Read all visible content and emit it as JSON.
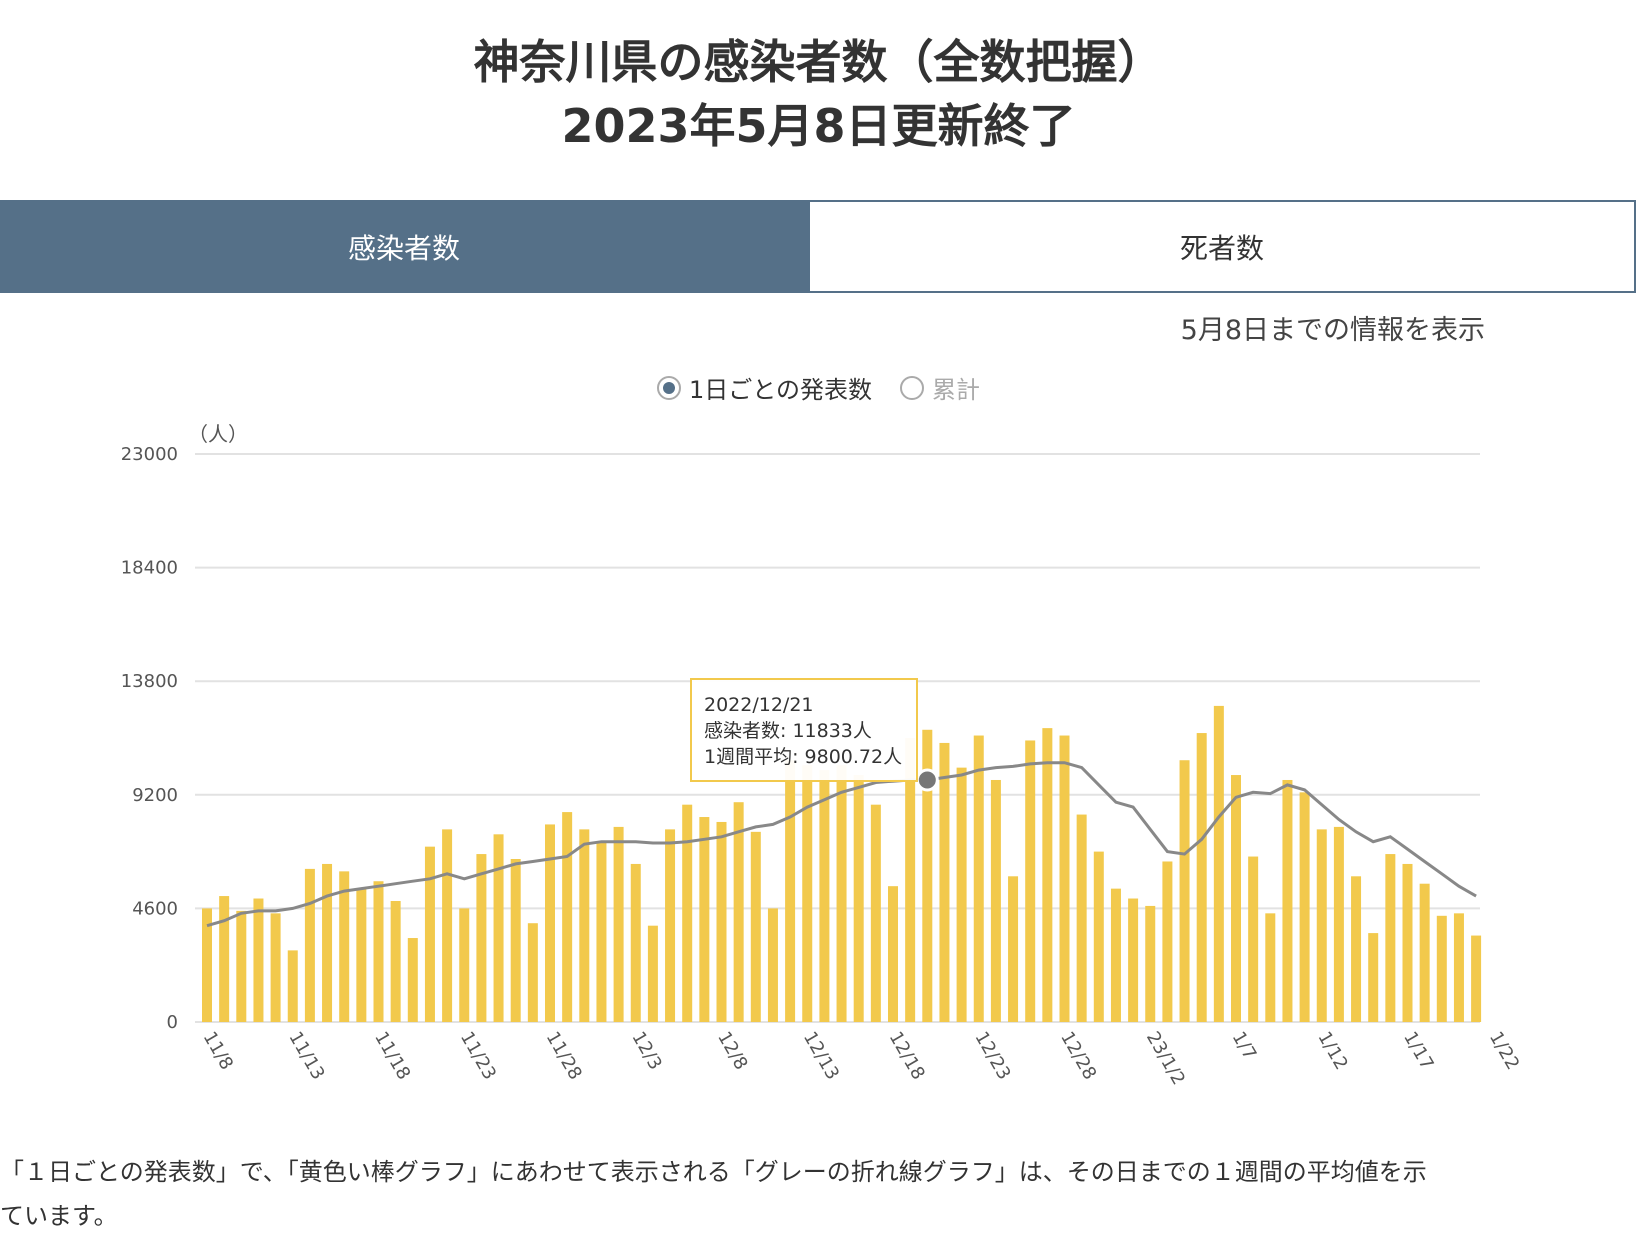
{
  "title": {
    "line1": "神奈川県の感染者数（全数把握）",
    "line2": "2023年5月8日更新終了"
  },
  "tabs": [
    {
      "label": "感染者数",
      "active": true
    },
    {
      "label": "死者数",
      "active": false
    }
  ],
  "info_text": "5月8日までの情報を表示",
  "radio": {
    "daily_label": "1日ごとの発表数",
    "cumulative_label": "累計",
    "selected": "daily"
  },
  "tooltip": {
    "date": "2022/12/21",
    "cases": "感染者数: 11833人",
    "average": "1週間平均: 9800.72人"
  },
  "footnote": {
    "line1": "「１日ごとの発表数」で、「黄色い棒グラフ」にあわせて表示される「グレーの折れ線グラフ」は、その日までの１週間の平均値を示",
    "line2": "ています。"
  },
  "colors": {
    "tab_active": "#557088",
    "bar": "#f2c94c",
    "average_line": "#888888"
  },
  "chart_data": {
    "type": "bar",
    "ylabel": "（人）",
    "ylim": [
      0,
      23000
    ],
    "yticks": [
      0,
      4600,
      9200,
      13800,
      18400,
      23000
    ],
    "x_tick_labels": [
      "11/8",
      "11/13",
      "11/18",
      "11/23",
      "11/28",
      "12/3",
      "12/8",
      "12/13",
      "12/18",
      "12/23",
      "12/28",
      "23/1/2",
      "1/7",
      "1/12",
      "1/17",
      "1/22"
    ],
    "x_start": "2022-11-08",
    "x_end": "2023-01-22",
    "series": [
      {
        "type": "bar",
        "values": [
          4600,
          5100,
          4500,
          5000,
          4400,
          2900,
          6200,
          6400,
          6100,
          5400,
          5700,
          4900,
          3400,
          7100,
          7800,
          4600,
          6800,
          7600,
          6600,
          4000,
          8000,
          8500,
          7800,
          7300,
          7900,
          6400,
          3900,
          7800,
          8800,
          8300,
          8100,
          8900,
          7700,
          4600,
          10600,
          10400,
          10200,
          10400,
          10000,
          8800,
          5500,
          11500,
          11833,
          11300,
          10300,
          11600,
          9800,
          5900,
          11400,
          11900,
          11600,
          8400,
          6900,
          5400,
          5000,
          4700,
          6500,
          10600,
          11700,
          12800,
          10000,
          6700,
          4400,
          9800,
          9300,
          7800,
          7900,
          5900,
          3600,
          6800,
          6400,
          5600,
          4300,
          4400,
          3500
        ]
      },
      {
        "type": "line",
        "values": [
          3900,
          4100,
          4400,
          4500,
          4500,
          4600,
          4800,
          5100,
          5300,
          5400,
          5500,
          5600,
          5700,
          5800,
          6000,
          5800,
          6000,
          6200,
          6400,
          6500,
          6600,
          6700,
          7200,
          7300,
          7300,
          7300,
          7250,
          7250,
          7300,
          7400,
          7500,
          7700,
          7900,
          8000,
          8300,
          8700,
          9000,
          9300,
          9500,
          9700,
          9750,
          9800,
          9800.72,
          9900,
          10000,
          10200,
          10300,
          10350,
          10450,
          10500,
          10500,
          10300,
          9600,
          8900,
          8700,
          7800,
          6900,
          6800,
          7400,
          8300,
          9100,
          9300,
          9250,
          9600,
          9400,
          8800,
          8200,
          7700,
          7300,
          7500,
          7000,
          6500,
          6000,
          5500,
          5100
        ]
      }
    ]
  }
}
